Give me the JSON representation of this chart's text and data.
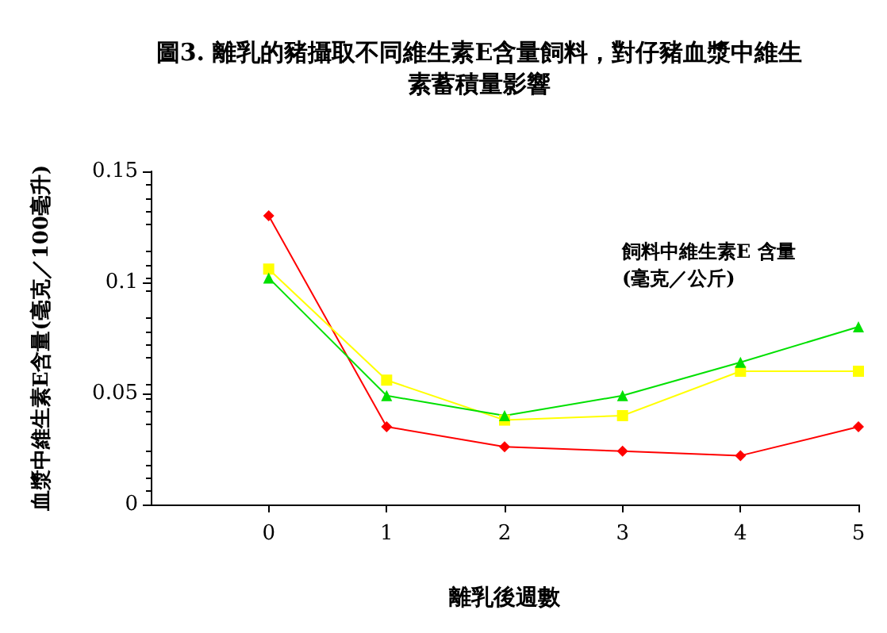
{
  "chart_data": {
    "type": "line",
    "title": "圖3. 離乳的豬攝取不同維生素E含量飼料，對仔豬血漿中維生素蓄積量影響",
    "xlabel": "離乳後週數",
    "ylabel": "血漿中維生素E含量(毫克／100毫升)",
    "legend_title": "飼料中維生素E 含量\n(毫克／公斤)",
    "x": [
      0,
      1,
      2,
      3,
      4,
      5
    ],
    "series": [
      {
        "color": "#ff0000",
        "marker": "diamond",
        "values": [
          0.13,
          0.035,
          0.026,
          0.024,
          0.022,
          0.035
        ]
      },
      {
        "color": "#ffff00",
        "marker": "square",
        "values": [
          0.106,
          0.056,
          0.038,
          0.04,
          0.06,
          0.06
        ]
      },
      {
        "color": "#00e000",
        "marker": "triangle",
        "values": [
          0.102,
          0.049,
          0.04,
          0.049,
          0.064,
          0.08
        ]
      }
    ],
    "xlim": [
      -1,
      5
    ],
    "xticks": [
      0,
      1,
      2,
      3,
      4,
      5
    ],
    "ylim": [
      0,
      0.15
    ],
    "yticks": [
      0,
      0.05,
      0.1,
      0.15
    ],
    "grid": false
  }
}
